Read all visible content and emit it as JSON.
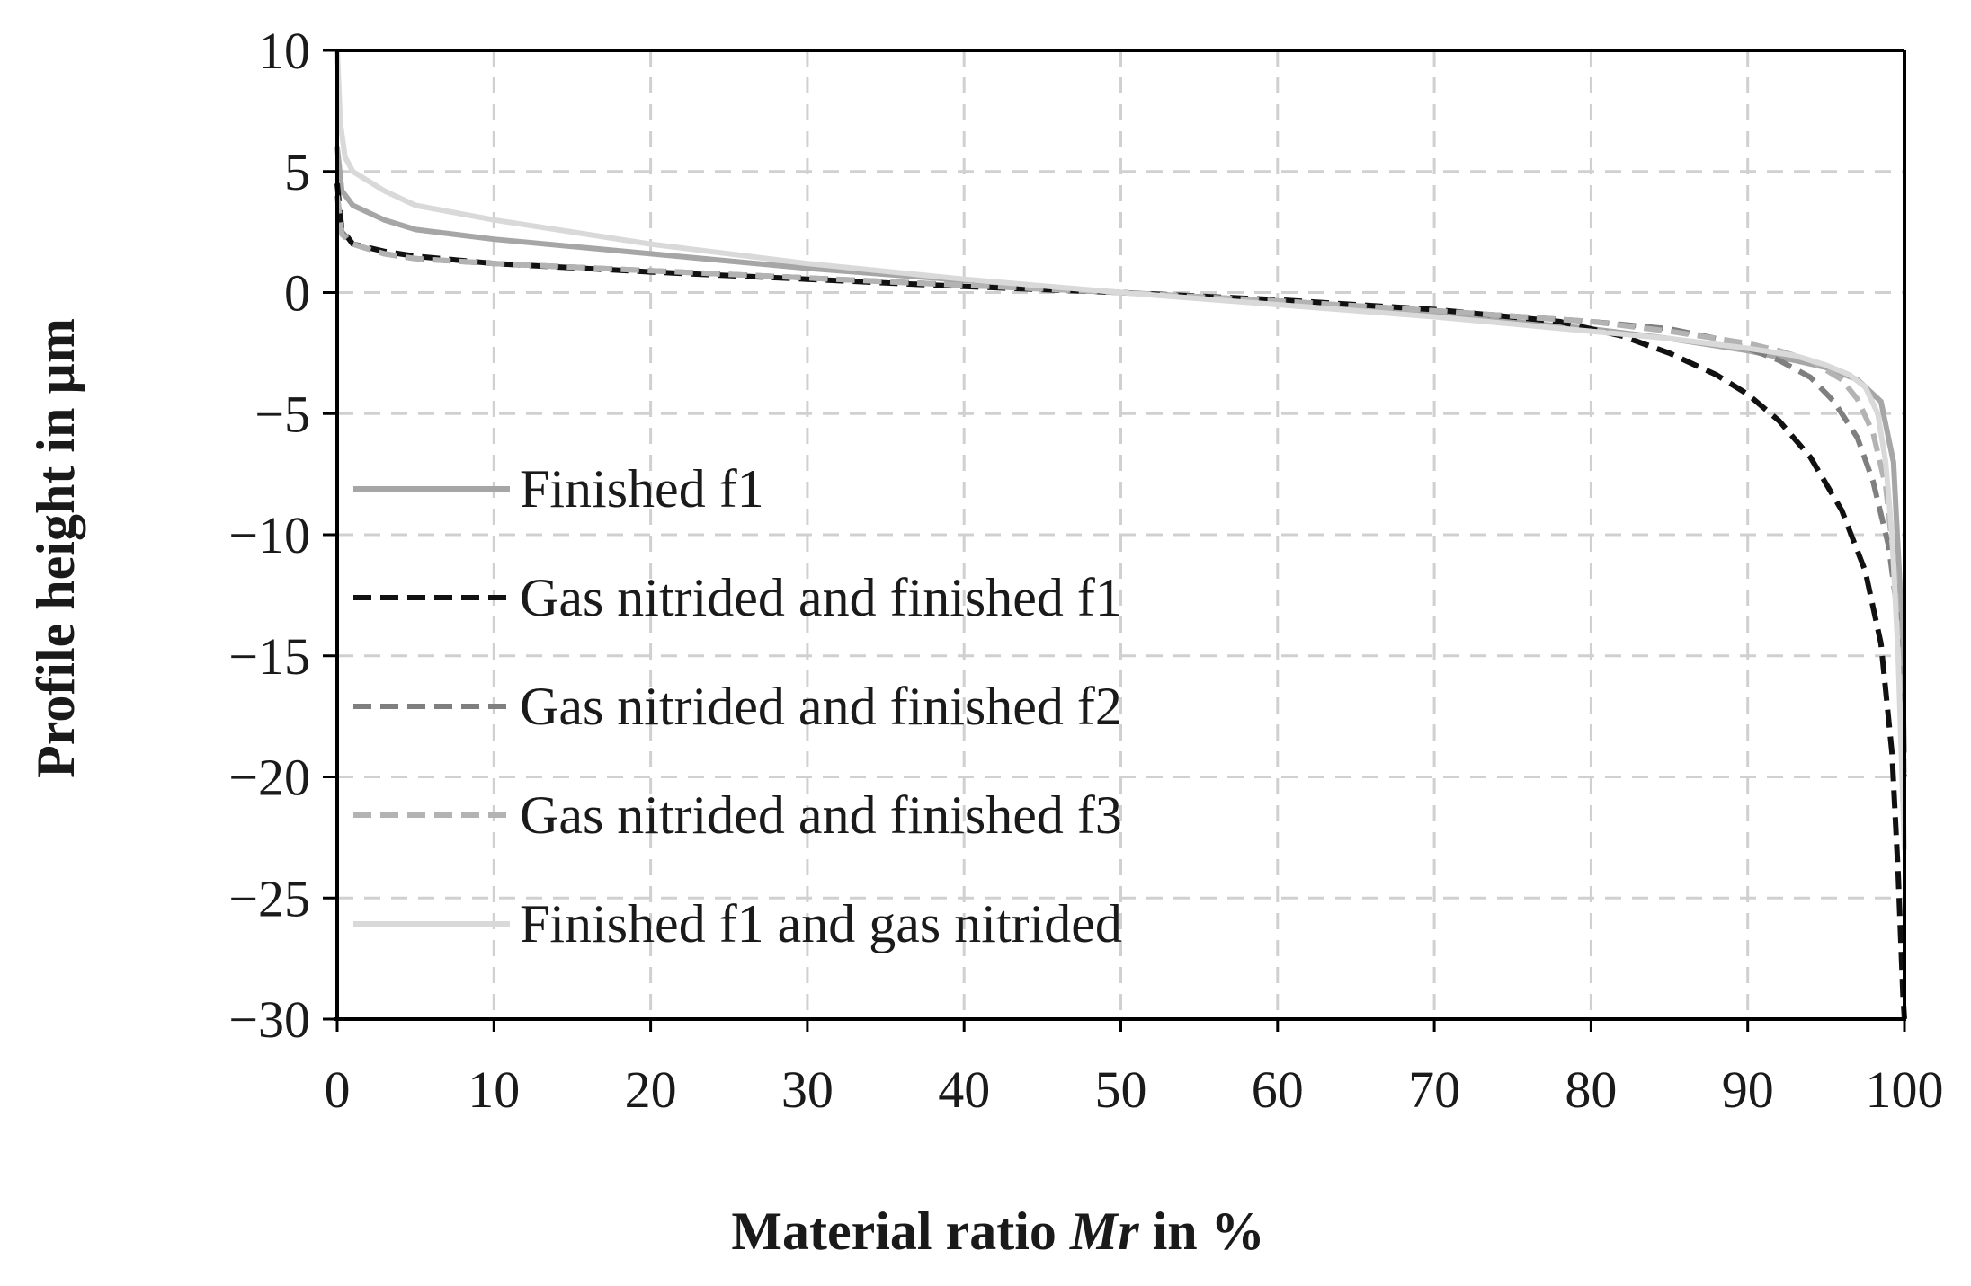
{
  "chart_data": {
    "type": "line",
    "title": "",
    "xlabel_parts": [
      "Material ratio ",
      "Mr",
      " in %"
    ],
    "ylabel": "Profile height in µm",
    "xlim": [
      0,
      100
    ],
    "ylim": [
      -30,
      10
    ],
    "x_ticks": [
      0,
      10,
      20,
      30,
      40,
      50,
      60,
      70,
      80,
      90,
      100
    ],
    "y_ticks": [
      10,
      5,
      0,
      -5,
      -10,
      -15,
      -20,
      -25,
      -30
    ],
    "x_tick_labels": [
      "0",
      "10",
      "20",
      "30",
      "40",
      "50",
      "60",
      "70",
      "80",
      "90",
      "100"
    ],
    "y_tick_labels": [
      "10",
      "5",
      "0",
      "−5",
      "−10",
      "−15",
      "−20",
      "−25",
      "−30"
    ],
    "grid": true,
    "legend_position": "left",
    "series": [
      {
        "name": "Finished f1",
        "color": "#a6a6a6",
        "dash": "solid",
        "points": [
          [
            0,
            6
          ],
          [
            0.3,
            4.2
          ],
          [
            1,
            3.6
          ],
          [
            3,
            3.0
          ],
          [
            5,
            2.6
          ],
          [
            10,
            2.2
          ],
          [
            20,
            1.6
          ],
          [
            30,
            1.0
          ],
          [
            40,
            0.5
          ],
          [
            50,
            0
          ],
          [
            60,
            -0.4
          ],
          [
            70,
            -0.9
          ],
          [
            80,
            -1.5
          ],
          [
            85,
            -1.9
          ],
          [
            90,
            -2.4
          ],
          [
            93,
            -2.8
          ],
          [
            95,
            -3.1
          ],
          [
            97,
            -3.6
          ],
          [
            98.5,
            -4.5
          ],
          [
            99.3,
            -7
          ],
          [
            99.7,
            -12
          ],
          [
            100,
            -19
          ]
        ]
      },
      {
        "name": "Gas nitrided and finished f1",
        "color": "#111111",
        "dash": "dashed",
        "points": [
          [
            0,
            4.5
          ],
          [
            0.3,
            2.6
          ],
          [
            1,
            2.0
          ],
          [
            3,
            1.7
          ],
          [
            5,
            1.5
          ],
          [
            10,
            1.2
          ],
          [
            20,
            0.85
          ],
          [
            30,
            0.55
          ],
          [
            40,
            0.25
          ],
          [
            50,
            0
          ],
          [
            60,
            -0.3
          ],
          [
            70,
            -0.7
          ],
          [
            78,
            -1.2
          ],
          [
            82,
            -1.8
          ],
          [
            85,
            -2.5
          ],
          [
            88,
            -3.4
          ],
          [
            90,
            -4.2
          ],
          [
            92,
            -5.3
          ],
          [
            94,
            -6.8
          ],
          [
            96,
            -9.0
          ],
          [
            97.5,
            -11.5
          ],
          [
            98.5,
            -14.5
          ],
          [
            99.2,
            -19
          ],
          [
            99.6,
            -24
          ],
          [
            99.9,
            -29
          ],
          [
            100,
            -30
          ]
        ]
      },
      {
        "name": "Gas nitrided and finished f2",
        "color": "#7f7f7f",
        "dash": "dashed",
        "points": [
          [
            0,
            4.0
          ],
          [
            0.3,
            2.5
          ],
          [
            1,
            2.0
          ],
          [
            3,
            1.6
          ],
          [
            5,
            1.4
          ],
          [
            10,
            1.2
          ],
          [
            20,
            0.9
          ],
          [
            30,
            0.6
          ],
          [
            40,
            0.3
          ],
          [
            50,
            0
          ],
          [
            60,
            -0.35
          ],
          [
            70,
            -0.75
          ],
          [
            80,
            -1.2
          ],
          [
            85,
            -1.5
          ],
          [
            88,
            -1.9
          ],
          [
            90,
            -2.3
          ],
          [
            92,
            -2.8
          ],
          [
            94,
            -3.5
          ],
          [
            95.5,
            -4.5
          ],
          [
            97,
            -6.0
          ],
          [
            98,
            -7.8
          ],
          [
            99,
            -10.5
          ],
          [
            99.5,
            -13
          ],
          [
            100,
            -20
          ]
        ]
      },
      {
        "name": "Gas nitrided and finished f3",
        "color": "#b3b3b3",
        "dash": "dashed",
        "points": [
          [
            0,
            4.0
          ],
          [
            0.3,
            2.4
          ],
          [
            1,
            2.0
          ],
          [
            3,
            1.6
          ],
          [
            5,
            1.4
          ],
          [
            10,
            1.2
          ],
          [
            20,
            0.9
          ],
          [
            30,
            0.6
          ],
          [
            40,
            0.3
          ],
          [
            50,
            0
          ],
          [
            60,
            -0.35
          ],
          [
            70,
            -0.75
          ],
          [
            80,
            -1.2
          ],
          [
            85,
            -1.6
          ],
          [
            90,
            -2.1
          ],
          [
            92,
            -2.4
          ],
          [
            94,
            -2.8
          ],
          [
            96,
            -3.6
          ],
          [
            97,
            -4.4
          ],
          [
            98,
            -5.8
          ],
          [
            98.8,
            -8
          ],
          [
            99.4,
            -11.5
          ],
          [
            100,
            -20
          ]
        ]
      },
      {
        "name": "Finished f1 and gas nitrided",
        "color": "#d9d9d9",
        "dash": "solid",
        "points": [
          [
            0,
            10
          ],
          [
            0.2,
            7
          ],
          [
            0.5,
            5.6
          ],
          [
            1,
            5.0
          ],
          [
            3,
            4.2
          ],
          [
            5,
            3.6
          ],
          [
            10,
            3.0
          ],
          [
            20,
            2.0
          ],
          [
            30,
            1.2
          ],
          [
            40,
            0.55
          ],
          [
            50,
            0
          ],
          [
            60,
            -0.5
          ],
          [
            70,
            -1.0
          ],
          [
            80,
            -1.6
          ],
          [
            85,
            -1.9
          ],
          [
            90,
            -2.3
          ],
          [
            93,
            -2.6
          ],
          [
            95,
            -3.0
          ],
          [
            96.5,
            -3.4
          ],
          [
            97.5,
            -3.9
          ],
          [
            98.3,
            -5.0
          ],
          [
            98.8,
            -7
          ],
          [
            99.2,
            -10
          ],
          [
            99.6,
            -15
          ],
          [
            100,
            -23
          ]
        ]
      }
    ]
  }
}
